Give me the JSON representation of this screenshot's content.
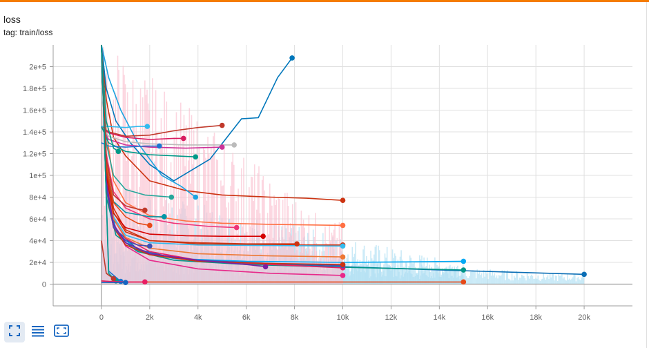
{
  "card": {
    "title": "loss",
    "subtitle": "tag: train/loss"
  },
  "toolbar": {
    "icons": [
      "fit-domain-icon",
      "toggle-log-icon",
      "expand-icon"
    ]
  },
  "colors": {
    "accent": "#f57c00",
    "grid": "#e0e0e0",
    "toolbar_icon": "#1565c0"
  },
  "chart_data": {
    "type": "line",
    "xlabel": "",
    "ylabel": "",
    "xlim": [
      -2000,
      22000
    ],
    "ylim": [
      -20000,
      220000
    ],
    "grid": true,
    "x_ticks": [
      0,
      2000,
      4000,
      6000,
      8000,
      10000,
      12000,
      14000,
      16000,
      18000,
      20000
    ],
    "x_tick_labels": [
      "0",
      "2k",
      "4k",
      "6k",
      "8k",
      "10k",
      "12k",
      "14k",
      "16k",
      "18k",
      "20k"
    ],
    "y_ticks": [
      0,
      20000,
      40000,
      60000,
      80000,
      100000,
      120000,
      140000,
      160000,
      180000,
      200000
    ],
    "y_tick_labels": [
      "0",
      "2e+4",
      "4e+4",
      "6e+4",
      "8e+4",
      "1e+5",
      "1.2e+5",
      "1.4e+5",
      "1.6e+5",
      "1.8e+5",
      "2e+5"
    ],
    "series": [
      {
        "color": "#0b6eb5",
        "x": [
          0,
          200,
          600,
          1500,
          3000,
          6000,
          10000,
          14000,
          17000,
          20000
        ],
        "y": [
          230000,
          90000,
          50000,
          32000,
          24000,
          19000,
          16000,
          13000,
          11000,
          9000
        ]
      },
      {
        "color": "#009688",
        "x": [
          0,
          200,
          600,
          1500,
          3000,
          6000,
          10000,
          13000,
          15000
        ],
        "y": [
          230000,
          80000,
          45000,
          30000,
          22000,
          18000,
          15500,
          14000,
          13000
        ]
      },
      {
        "color": "#03a9f4",
        "x": [
          0,
          200,
          600,
          1500,
          3000,
          6000,
          10000,
          13000,
          15000
        ],
        "y": [
          230000,
          85000,
          48000,
          31000,
          23500,
          21000,
          20000,
          20500,
          21000
        ]
      },
      {
        "color": "#e64a19",
        "x": [
          0,
          300,
          1000,
          2000,
          4000,
          7000,
          10000,
          13000,
          15000
        ],
        "y": [
          3000,
          2500,
          2000,
          2000,
          2000,
          2000,
          2000,
          2000,
          2000
        ]
      },
      {
        "color": "#cc3311",
        "x": [
          0,
          200,
          500,
          1000,
          2000,
          3500,
          5000,
          7000,
          8500,
          10000
        ],
        "y": [
          230000,
          170000,
          135000,
          118000,
          95000,
          86000,
          82000,
          80000,
          79000,
          77000
        ]
      },
      {
        "color": "#ff7043",
        "x": [
          0,
          200,
          500,
          1000,
          2000,
          3500,
          5000,
          7000,
          10000
        ],
        "y": [
          230000,
          140000,
          95000,
          75000,
          63000,
          58000,
          56000,
          55000,
          54000
        ]
      },
      {
        "color": "#e7298a",
        "x": [
          0,
          200,
          500,
          1000,
          2000,
          4000,
          7000,
          10000
        ],
        "y": [
          230000,
          90000,
          55000,
          35000,
          22000,
          14000,
          10000,
          8000
        ]
      },
      {
        "color": "#e91e63",
        "x": [
          0,
          200,
          500,
          1000,
          2000,
          4000,
          7000,
          10000
        ],
        "y": [
          230000,
          95000,
          60000,
          42000,
          30000,
          22000,
          18000,
          15000
        ]
      },
      {
        "color": "#cc3311",
        "x": [
          0,
          200,
          500,
          1000,
          2000,
          4000,
          7000,
          10000
        ],
        "y": [
          230000,
          110000,
          70000,
          50000,
          40000,
          37000,
          36000,
          36000
        ]
      },
      {
        "color": "#33bbee",
        "x": [
          0,
          200,
          500,
          1000,
          2000,
          4000,
          7000,
          10000
        ],
        "y": [
          230000,
          100000,
          62000,
          45000,
          38000,
          36000,
          35500,
          35000
        ]
      },
      {
        "color": "#3f51b5",
        "x": [
          0,
          200,
          500,
          1000,
          2000,
          4000,
          7000,
          10000
        ],
        "y": [
          230000,
          92000,
          55000,
          38000,
          28000,
          22000,
          19000,
          17000
        ]
      },
      {
        "color": "#ee7733",
        "x": [
          0,
          200,
          500,
          1000,
          2000,
          4000,
          7000,
          10000
        ],
        "y": [
          230000,
          98000,
          60000,
          43000,
          33000,
          28000,
          26000,
          25000
        ]
      },
      {
        "color": "#cc3311",
        "x": [
          0,
          200,
          500,
          1000,
          2000,
          4000,
          7000,
          10000
        ],
        "y": [
          230000,
          88000,
          52000,
          36000,
          27000,
          21000,
          19000,
          18000
        ]
      },
      {
        "color": "#0077bb",
        "x": [
          0,
          200,
          600,
          1200,
          2000,
          3000,
          4500,
          5800,
          6500,
          7300,
          7900
        ],
        "y": [
          230000,
          180000,
          150000,
          130000,
          110000,
          95000,
          115000,
          152000,
          153000,
          190000,
          208000
        ]
      },
      {
        "color": "#1ba3e0",
        "x": [
          0,
          300,
          800,
          1500,
          2500,
          3300,
          3900
        ],
        "y": [
          230000,
          190000,
          160000,
          130000,
          100000,
          90000,
          80000
        ]
      },
      {
        "color": "#c0392b",
        "x": [
          0,
          300,
          1000,
          2000,
          3000,
          4000,
          5000
        ],
        "y": [
          145000,
          140000,
          136000,
          137000,
          141000,
          144000,
          146000
        ]
      },
      {
        "color": "#d81b60",
        "x": [
          0,
          300,
          1000,
          2000,
          3000,
          3400
        ],
        "y": [
          145000,
          139000,
          135000,
          133000,
          134000,
          134000
        ]
      },
      {
        "color": "#bbbbbb",
        "x": [
          0,
          300,
          1000,
          2000,
          3500,
          5000,
          5500
        ],
        "y": [
          145000,
          136000,
          131000,
          129000,
          128000,
          128000,
          128000
        ]
      },
      {
        "color": "#cc3399",
        "x": [
          0,
          300,
          1000,
          2000,
          3500,
          5000
        ],
        "y": [
          145000,
          133000,
          128000,
          126000,
          125000,
          126000
        ]
      },
      {
        "color": "#009988",
        "x": [
          0,
          300,
          1000,
          2000,
          3000,
          3900
        ],
        "y": [
          145000,
          130000,
          122000,
          119000,
          118000,
          117000
        ]
      },
      {
        "color": "#1976d2",
        "x": [
          0,
          300,
          1000,
          1800,
          2400
        ],
        "y": [
          130000,
          127000,
          126000,
          127000,
          127000
        ]
      },
      {
        "color": "#33bbee",
        "x": [
          0,
          300,
          1000,
          1500,
          1900
        ],
        "y": [
          145000,
          145000,
          144000,
          145000,
          145000
        ]
      },
      {
        "color": "#009988",
        "x": [
          0,
          200,
          500,
          700
        ],
        "y": [
          230000,
          150000,
          125000,
          122000
        ]
      },
      {
        "color": "#ee3377",
        "x": [
          0,
          200,
          500,
          1000,
          2000,
          3000,
          4500,
          5600
        ],
        "y": [
          230000,
          120000,
          85000,
          70000,
          60000,
          56000,
          53000,
          52000
        ]
      },
      {
        "color": "#d50000",
        "x": [
          0,
          200,
          500,
          1000,
          2000,
          3500,
          5000,
          6700
        ],
        "y": [
          230000,
          100000,
          65000,
          52000,
          46000,
          44500,
          44000,
          44000
        ]
      },
      {
        "color": "#0097a7",
        "x": [
          0,
          200,
          500,
          1000,
          2000,
          2600
        ],
        "y": [
          230000,
          110000,
          76000,
          66000,
          62000,
          62000
        ]
      },
      {
        "color": "#26a69a",
        "x": [
          0,
          200,
          500,
          1000,
          1800,
          2900
        ],
        "y": [
          230000,
          130000,
          100000,
          87000,
          82000,
          80000
        ]
      },
      {
        "color": "#e64a19",
        "x": [
          0,
          200,
          500,
          1000,
          1500,
          2000
        ],
        "y": [
          230000,
          110000,
          75000,
          62000,
          56000,
          54000
        ]
      },
      {
        "color": "#c0392b",
        "x": [
          0,
          200,
          500,
          1000,
          1500,
          1800
        ],
        "y": [
          230000,
          115000,
          82000,
          72000,
          69000,
          68000
        ]
      },
      {
        "color": "#3f51b5",
        "x": [
          0,
          200,
          500,
          1000,
          1500,
          2000
        ],
        "y": [
          230000,
          90000,
          52000,
          40000,
          36000,
          35000
        ]
      },
      {
        "color": "#7b1fa2",
        "x": [
          0,
          200,
          500,
          1000,
          2000,
          4000,
          6000,
          6800
        ],
        "y": [
          230000,
          95000,
          55000,
          38000,
          28000,
          22000,
          18000,
          16000
        ]
      },
      {
        "color": "#cc3311",
        "x": [
          0,
          200,
          500,
          1000,
          2000,
          4000,
          6000,
          8100
        ],
        "y": [
          230000,
          105000,
          66000,
          48000,
          40000,
          38000,
          37000,
          37000
        ]
      },
      {
        "color": "#1976d2",
        "x": [
          0,
          300,
          800
        ],
        "y": [
          230000,
          12000,
          2500
        ]
      },
      {
        "color": "#009988",
        "x": [
          0,
          300,
          600
        ],
        "y": [
          230000,
          10000,
          3000
        ]
      },
      {
        "color": "#c0392b",
        "x": [
          0,
          200,
          500
        ],
        "y": [
          40000,
          10000,
          5000
        ]
      },
      {
        "color": "#e91e63",
        "x": [
          0,
          300,
          1000,
          1800
        ],
        "y": [
          3000,
          2500,
          2000,
          2000
        ]
      },
      {
        "color": "#1565c0",
        "x": [
          0,
          300,
          1000
        ],
        "y": [
          1500,
          1500,
          1500
        ]
      }
    ],
    "noise_bands": [
      {
        "color": "#aedff3",
        "x_end": 15000,
        "height": 95000
      },
      {
        "color": "#aedff3",
        "x_end": 20000,
        "height": 40000
      },
      {
        "color": "#fbc1d0",
        "x_end": 10000,
        "height": 230000
      }
    ]
  }
}
